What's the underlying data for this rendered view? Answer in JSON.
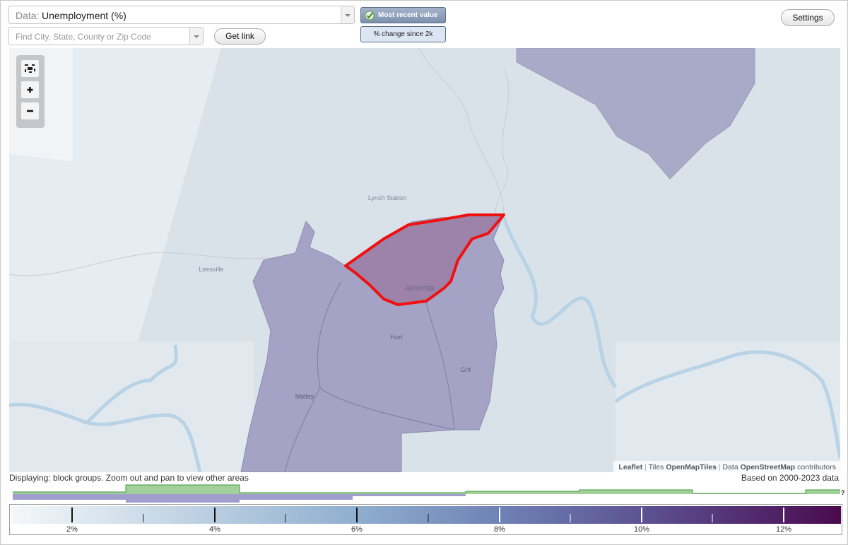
{
  "controls": {
    "data_label": "Data:",
    "data_value": "Unemployment (%)",
    "search_placeholder": "Find City, State, County or Zip Code",
    "get_link": "Get link",
    "most_recent": "Most recent value",
    "pct_change": "% change since 2k",
    "settings": "Settings"
  },
  "map": {
    "places": [
      "Lynch Station",
      "Leesville",
      "Altavista",
      "Hurt",
      "Grit",
      "Motley"
    ],
    "attribution": {
      "leaflet": "Leaflet",
      "separator": "|",
      "tiles_label": "Tiles",
      "tiles": "OpenMapTiles",
      "data_label": "Data",
      "data": "OpenStreetMap",
      "contributors": "contributors"
    }
  },
  "status": {
    "displaying": "Displaying: block groups. Zoom out and pan to view other areas",
    "based_on": "Based on 2000-2023 data"
  },
  "legend": {
    "labels": [
      "2%",
      "4%",
      "6%",
      "8%",
      "10%",
      "12%"
    ],
    "help": "?"
  }
}
